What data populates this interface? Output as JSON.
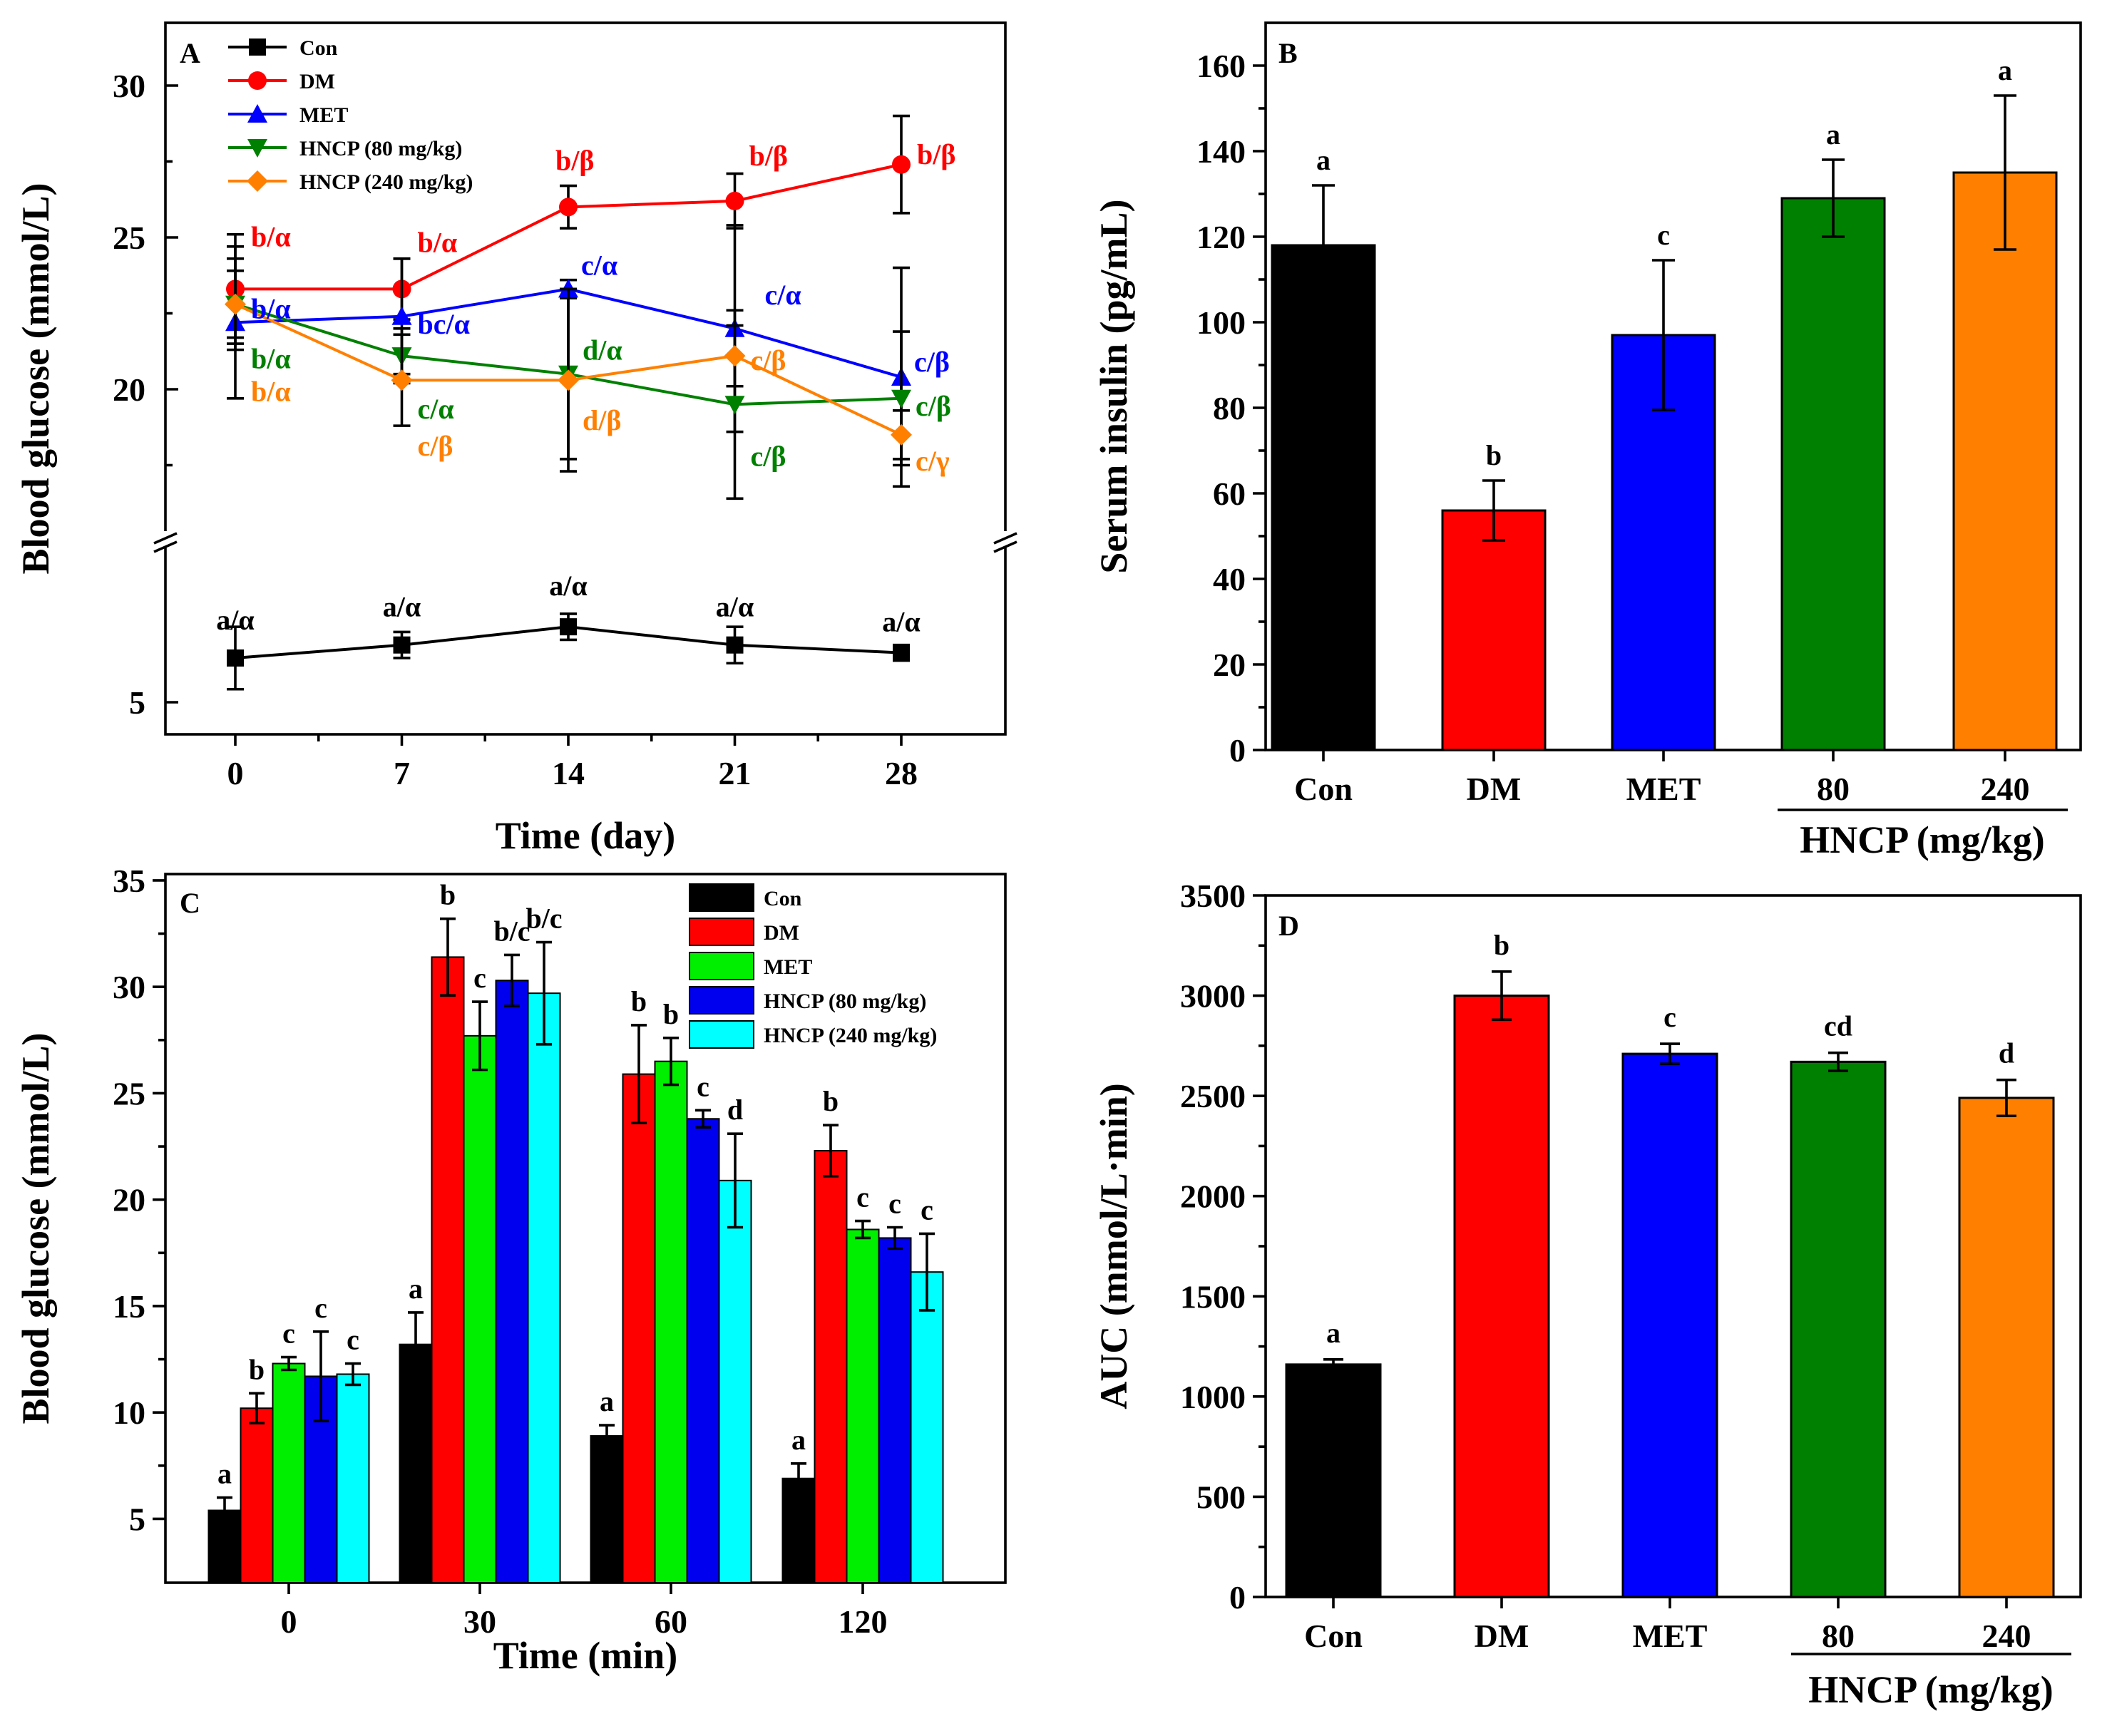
{
  "colors": {
    "Con": "#000000",
    "DM": "#ff0000",
    "MET_line": "#0000ff",
    "HNCP80_line": "#008000",
    "HNCP240_line": "#ff8000",
    "MET_barC": "#00ee00",
    "HNCP80_barC": "#0000ee",
    "HNCP240_barC": "#00ffff",
    "MET_bar": "#0000ff",
    "HNCP80_bar": "#008000",
    "HNCP240_bar": "#ff8000"
  },
  "chart_data": [
    {
      "panel": "A",
      "type": "line",
      "xlabel": "Time (day)",
      "ylabel": "Blood glucose (mmol/L)",
      "x": [
        0,
        7,
        14,
        21,
        28
      ],
      "x_ticks": [
        "0",
        "7",
        "14",
        "21",
        "28"
      ],
      "y_ticks": [
        "5",
        "20",
        "25",
        "30"
      ],
      "axis_break": true,
      "legend": [
        "Con",
        "DM",
        "MET",
        "HNCP (80 mg/kg)",
        "HNCP (240 mg/kg)"
      ],
      "series": [
        {
          "name": "Con",
          "values": [
            6.7,
            7.2,
            7.9,
            7.2,
            6.9
          ],
          "errors": [
            1.2,
            0.5,
            0.5,
            0.7,
            0.3
          ],
          "labels": [
            "a/α",
            "a/α",
            "a/α",
            "a/α",
            "a/α"
          ]
        },
        {
          "name": "DM",
          "values": [
            23.3,
            23.3,
            26.0,
            26.2,
            27.4
          ],
          "errors": [
            1.8,
            1.0,
            0.7,
            0.9,
            1.6
          ],
          "labels": [
            "b/α",
            "b/α",
            "b/β",
            "b/β",
            "b/β"
          ]
        },
        {
          "name": "MET",
          "values": [
            22.2,
            22.4,
            23.3,
            22.0,
            20.4
          ],
          "errors": [
            2.5,
            1.9,
            0.3,
            3.4,
            3.6
          ],
          "labels": [
            "b/α",
            "bc/α",
            "c/α",
            "c/α",
            "c/β"
          ]
        },
        {
          "name": "HNCP (80 mg/kg)",
          "values": [
            22.8,
            21.1,
            20.5,
            19.5,
            19.7
          ],
          "errors": [
            1.5,
            0.9,
            2.8,
            3.1,
            2.2
          ],
          "labels": [
            "b/α",
            "c/α",
            "d/α",
            "c/β",
            "c/β"
          ]
        },
        {
          "name": "HNCP (240 mg/kg)",
          "values": [
            22.8,
            20.3,
            20.3,
            21.1,
            18.5
          ],
          "errors": [
            1.1,
            1.5,
            3.0,
            1.0,
            0.8
          ],
          "labels": [
            "b/α",
            "c/β",
            "d/β",
            "c/β",
            "c/γ"
          ]
        }
      ]
    },
    {
      "panel": "B",
      "type": "bar",
      "ylabel": "Serum insulin (pg/mL)",
      "categories": [
        "Con",
        "DM",
        "MET",
        "80",
        "240"
      ],
      "group_label": "HNCP (mg/kg)",
      "values": [
        118,
        56,
        97,
        129,
        135
      ],
      "errors": [
        14,
        7,
        17.5,
        9,
        18
      ],
      "letters": [
        "a",
        "b",
        "c",
        "a",
        "a"
      ],
      "ylim": [
        0,
        170
      ],
      "y_ticks": [
        "0",
        "20",
        "40",
        "60",
        "80",
        "100",
        "120",
        "140",
        "160"
      ]
    },
    {
      "panel": "C",
      "type": "bar",
      "xlabel": "Time (min)",
      "ylabel": "Blood glucose (mmol/L)",
      "categories": [
        "0",
        "30",
        "60",
        "120"
      ],
      "ylim": [
        2,
        35.3
      ],
      "y_ticks": [
        "5",
        "10",
        "15",
        "20",
        "25",
        "30",
        "35"
      ],
      "legend": [
        "Con",
        "DM",
        "MET",
        "HNCP (80 mg/kg)",
        "HNCP (240 mg/kg)"
      ],
      "series": [
        {
          "name": "Con",
          "values": [
            5.4,
            13.2,
            8.9,
            6.9
          ],
          "errors": [
            0.6,
            1.5,
            0.5,
            0.7
          ]
        },
        {
          "name": "DM",
          "values": [
            10.2,
            31.4,
            25.9,
            22.3
          ],
          "errors": [
            0.7,
            1.8,
            2.3,
            1.2
          ]
        },
        {
          "name": "MET",
          "values": [
            12.3,
            27.7,
            26.5,
            18.6
          ],
          "errors": [
            0.3,
            1.6,
            1.1,
            0.4
          ]
        },
        {
          "name": "HNCP (80 mg/kg)",
          "values": [
            11.7,
            30.3,
            23.8,
            18.2
          ],
          "errors": [
            2.1,
            1.2,
            0.4,
            0.5
          ]
        },
        {
          "name": "HNCP (240 mg/kg)",
          "values": [
            11.8,
            29.7,
            20.9,
            16.6
          ],
          "errors": [
            0.5,
            2.4,
            2.2,
            1.8
          ]
        }
      ],
      "letters": [
        [
          "a",
          "b",
          "c",
          "c",
          "c"
        ],
        [
          "a",
          "b",
          "c",
          "b/c",
          "b/c"
        ],
        [
          "a",
          "b",
          "b",
          "c",
          "d"
        ],
        [
          "a",
          "b",
          "c",
          "c",
          "c"
        ]
      ]
    },
    {
      "panel": "D",
      "type": "bar",
      "ylabel": "AUC (mmol/L·min)",
      "categories": [
        "Con",
        "DM",
        "MET",
        "80",
        "240"
      ],
      "group_label": "HNCP (mg/kg)",
      "values": [
        1160,
        3000,
        2710,
        2670,
        2490
      ],
      "errors": [
        25,
        120,
        50,
        45,
        90
      ],
      "letters": [
        "a",
        "b",
        "c",
        "cd",
        "d"
      ],
      "ylim": [
        0,
        3500
      ],
      "y_ticks": [
        "0",
        "500",
        "1000",
        "1500",
        "2000",
        "2500",
        "3000",
        "3500"
      ]
    }
  ]
}
